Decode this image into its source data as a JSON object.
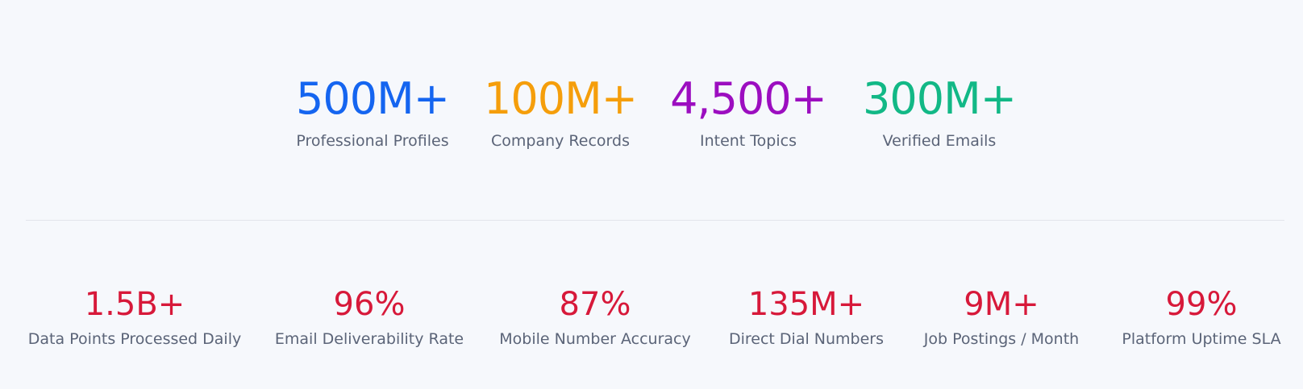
{
  "primary_stats": [
    {
      "value": "500M+",
      "label": "Professional Profiles"
    },
    {
      "value": "100M+",
      "label": "Company Records"
    },
    {
      "value": "4,500+",
      "label": "Intent Topics"
    },
    {
      "value": "300M+",
      "label": "Verified Emails"
    }
  ],
  "secondary_stats": [
    {
      "value": "1.5B+",
      "label": "Data Points Processed Daily"
    },
    {
      "value": "96%",
      "label": "Email Deliverability Rate"
    },
    {
      "value": "87%",
      "label": "Mobile Number Accuracy"
    },
    {
      "value": "135M+",
      "label": "Direct Dial Numbers"
    },
    {
      "value": "9M+",
      "label": "Job Postings / Month"
    },
    {
      "value": "99%",
      "label": "Platform Uptime SLA"
    }
  ]
}
